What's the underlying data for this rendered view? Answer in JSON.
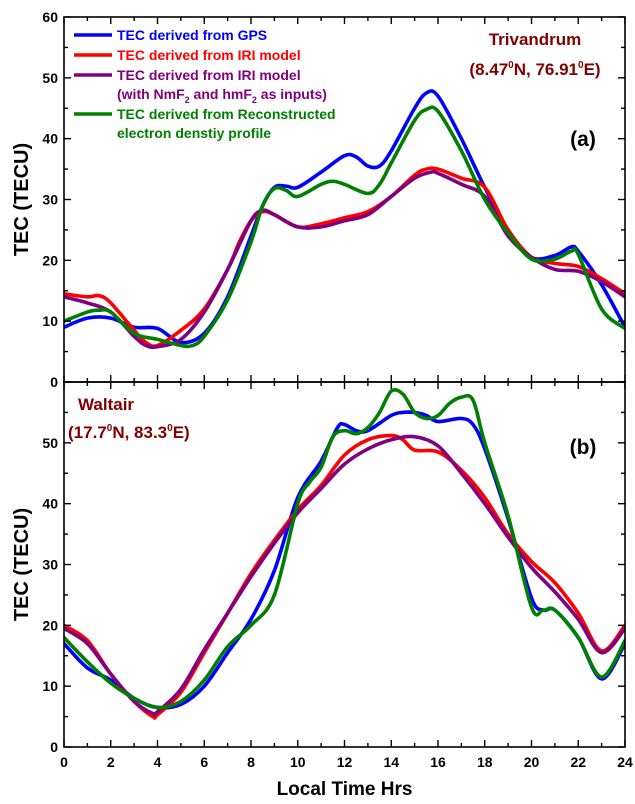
{
  "chart_data": [
    {
      "type": "line",
      "panel_label": "(a)",
      "station": "Trivandrum",
      "coords": {
        "lat": "8.47",
        "lat_dir": "N",
        "lon": "76.91",
        "lon_dir": "E"
      },
      "ylabel": "TEC (TECU)",
      "xlabel": "",
      "xlim": [
        0,
        24
      ],
      "ylim": [
        0,
        60
      ],
      "xticks": [
        0,
        2,
        4,
        6,
        8,
        10,
        12,
        14,
        16,
        18,
        20,
        22,
        24
      ],
      "yticks": [
        0,
        10,
        20,
        30,
        40,
        50,
        60
      ],
      "legend": {
        "position": "top-left",
        "entries": [
          {
            "series": 0,
            "lines": [
              {
                "text": "TEC derived from GPS"
              }
            ]
          },
          {
            "series": 1,
            "lines": [
              {
                "text": "TEC derived from IRI model"
              }
            ]
          },
          {
            "series": 2,
            "lines": [
              {
                "text": "TEC derived from IRI model"
              },
              {
                "text": "(with NmF",
                "sub": "2",
                "mid": " and hmF",
                "sub2": "2",
                "tail": " as inputs)"
              }
            ]
          },
          {
            "series": 3,
            "lines": [
              {
                "text": "TEC derived from Reconstructed"
              },
              {
                "text": "electron denstiy profile"
              }
            ]
          }
        ]
      },
      "series": [
        {
          "color": "#0000ff",
          "x": [
            0,
            1,
            2,
            3,
            4,
            5,
            6,
            7,
            8,
            8.5,
            9,
            9.5,
            10,
            11,
            12,
            12.5,
            13,
            13.5,
            14,
            15,
            15.5,
            16,
            17,
            18,
            19,
            20,
            21,
            21.7,
            22,
            23,
            24
          ],
          "y": [
            9,
            10.5,
            10.5,
            9,
            8.8,
            6.5,
            8,
            14,
            24,
            29,
            32,
            32.2,
            32,
            34.5,
            37.2,
            37,
            35.5,
            35.5,
            38,
            45,
            47.5,
            47,
            40,
            32,
            25,
            20.5,
            20.8,
            22.2,
            21.5,
            16,
            9
          ]
        },
        {
          "color": "#ff0000",
          "x": [
            0,
            1,
            1.5,
            2,
            3,
            3.5,
            4,
            5,
            6,
            7,
            7.5,
            8,
            8.5,
            9,
            10,
            11,
            12,
            13,
            14,
            15,
            15.5,
            16,
            17,
            18,
            19,
            20,
            21,
            22,
            23,
            24
          ],
          "y": [
            14.5,
            14,
            14.2,
            13,
            8.5,
            6.5,
            6,
            8.5,
            12,
            18.5,
            23,
            26.5,
            28,
            27.5,
            25.5,
            26,
            27,
            28,
            30.5,
            34,
            35,
            35,
            33.5,
            32,
            25,
            20.5,
            19.5,
            19,
            17,
            14.5
          ]
        },
        {
          "color": "#800080",
          "x": [
            0,
            1,
            2,
            3,
            3.5,
            4,
            5,
            6,
            7,
            8,
            8.5,
            9,
            10,
            11,
            12,
            13,
            14,
            15,
            15.7,
            16,
            17,
            18,
            19,
            20,
            21,
            22,
            23,
            24
          ],
          "y": [
            14,
            13,
            11.5,
            7.5,
            6,
            5.8,
            7,
            11.5,
            18.5,
            26.5,
            28.2,
            27.5,
            25.5,
            25.5,
            26.5,
            27.5,
            30.5,
            33.5,
            34.5,
            34.3,
            32.5,
            30.5,
            24,
            20.5,
            18.5,
            18.2,
            16.5,
            14
          ]
        },
        {
          "color": "#008000",
          "x": [
            0,
            1,
            1.5,
            2,
            3,
            4,
            5,
            5.5,
            6,
            7,
            8,
            8.5,
            9,
            9.5,
            10,
            11,
            11.5,
            12,
            13,
            13.5,
            14,
            15,
            15.5,
            16,
            17,
            18,
            19,
            20,
            21,
            21.7,
            22,
            23,
            24
          ],
          "y": [
            10,
            11.5,
            11.8,
            11.5,
            8,
            7,
            6,
            6,
            7.5,
            13.5,
            23,
            29,
            31.8,
            31.5,
            30.5,
            32.5,
            33,
            32.5,
            31,
            32.5,
            36,
            43,
            44.8,
            44.5,
            38,
            30,
            24.5,
            20.2,
            20.2,
            21.5,
            21,
            12,
            8.8
          ]
        }
      ]
    },
    {
      "type": "line",
      "panel_label": "(b)",
      "station": "Waltair",
      "coords": {
        "lat": "17.7",
        "lat_dir": "N",
        "lon": "83.3",
        "lon_dir": "E"
      },
      "ylabel": "TEC (TECU)",
      "xlabel": "Local Time Hrs",
      "xlim": [
        0,
        24
      ],
      "ylim": [
        0,
        60
      ],
      "xticks": [
        0,
        2,
        4,
        6,
        8,
        10,
        12,
        14,
        16,
        18,
        20,
        22,
        24
      ],
      "yticks": [
        0,
        10,
        20,
        30,
        40,
        50
      ],
      "series": [
        {
          "color": "#0000ff",
          "x": [
            0,
            1,
            2,
            3,
            4,
            5,
            6,
            7,
            8,
            9,
            10,
            11,
            11.7,
            12,
            12.5,
            13,
            14,
            14.5,
            15,
            15.5,
            16,
            17,
            17.5,
            18,
            19,
            20,
            20.5,
            21,
            22,
            23,
            24
          ],
          "y": [
            17,
            13,
            11,
            8,
            6.5,
            7,
            10,
            15.5,
            21,
            29,
            41,
            47,
            52.5,
            53,
            52,
            52,
            54.5,
            55,
            55,
            54.5,
            53.5,
            54,
            53,
            49,
            37.5,
            24.5,
            22.5,
            22.5,
            18,
            11.2,
            17
          ]
        },
        {
          "color": "#ff0000",
          "x": [
            0,
            1,
            2,
            3,
            3.8,
            4,
            5,
            6,
            7,
            8,
            9,
            10,
            11,
            12,
            13,
            14,
            14.5,
            15,
            16,
            17,
            18,
            19,
            20,
            21,
            22,
            23,
            24
          ],
          "y": [
            20,
            17.5,
            12,
            7.5,
            5,
            5.3,
            9,
            15.5,
            22,
            28.5,
            34,
            39,
            43,
            48,
            50.5,
            51.2,
            50.5,
            48.8,
            48.5,
            45.5,
            41,
            35,
            30.5,
            27,
            22,
            15.8,
            20
          ]
        },
        {
          "color": "#800080",
          "x": [
            0,
            1,
            2,
            3,
            3.8,
            4,
            5,
            6,
            7,
            8,
            9,
            10,
            11,
            12,
            13,
            14,
            15,
            16,
            17,
            18,
            19,
            20,
            21,
            22,
            23,
            24
          ],
          "y": [
            19.5,
            17,
            12,
            7.5,
            5.5,
            5.8,
            9.5,
            16,
            22,
            28,
            33.5,
            38.5,
            42.5,
            46.5,
            49,
            50.5,
            51,
            49.5,
            45,
            40,
            34.5,
            29.5,
            25.5,
            21,
            15.5,
            19.5
          ]
        },
        {
          "color": "#008000",
          "x": [
            0,
            1,
            2,
            3,
            4,
            5,
            6,
            7,
            8,
            9,
            10,
            10.5,
            11,
            11.5,
            12,
            12.5,
            13,
            13.5,
            14,
            14.5,
            15,
            15.5,
            16,
            16.5,
            17,
            17.5,
            18,
            19,
            20,
            20.5,
            21,
            22,
            23,
            24
          ],
          "y": [
            18,
            14,
            10.5,
            8,
            6.5,
            7.5,
            11,
            16.5,
            20,
            25,
            40,
            43.5,
            46,
            51,
            52,
            51.5,
            52.5,
            55,
            58.5,
            58,
            55,
            54,
            54.5,
            56.5,
            57.5,
            57,
            50,
            38,
            23,
            22.5,
            22.5,
            18,
            11.5,
            17.5
          ]
        }
      ]
    }
  ]
}
